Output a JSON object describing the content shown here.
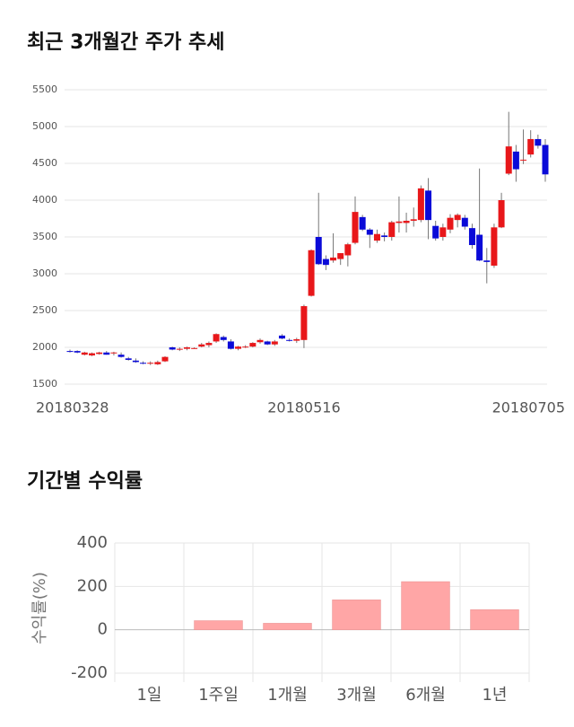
{
  "chart_data": [
    {
      "type": "candlestick",
      "title": "최근 3개월간 주가 추세",
      "categories": [
        "20180328",
        null,
        null,
        null,
        null,
        null,
        null,
        null,
        null,
        null,
        null,
        null,
        null,
        null,
        null,
        null,
        null,
        null,
        null,
        null,
        null,
        null,
        null,
        null,
        null,
        null,
        null,
        null,
        null,
        null,
        null,
        null,
        "20180516",
        null,
        null,
        null,
        null,
        null,
        null,
        null,
        null,
        null,
        null,
        null,
        null,
        null,
        null,
        null,
        null,
        null,
        null,
        null,
        null,
        null,
        null,
        null,
        null,
        null,
        null,
        null,
        null,
        null,
        null,
        null,
        null,
        "20180705"
      ],
      "open": [
        1950,
        1950,
        1900,
        1890,
        1910,
        1930,
        1920,
        1900,
        1850,
        1820,
        1790,
        1790,
        1770,
        1810,
        2000,
        1970,
        1980,
        1990,
        2010,
        2030,
        2080,
        2140,
        2080,
        1980,
        2000,
        2010,
        2070,
        2080,
        2040,
        2160,
        2100,
        2090,
        2100,
        2700,
        3500,
        3200,
        3180,
        3200,
        3250,
        3420,
        3770,
        3600,
        3450,
        3520,
        3500,
        3690,
        3690,
        3720,
        3730,
        4130,
        3650,
        3500,
        3600,
        3730,
        3760,
        3620,
        3530,
        3180,
        3110,
        3630,
        4360,
        4660,
        4540,
        4620,
        4830,
        4750
      ],
      "high": [
        1970,
        1960,
        1940,
        1930,
        1940,
        1950,
        1940,
        1930,
        1870,
        1850,
        1810,
        1810,
        1820,
        1880,
        2010,
        2000,
        2010,
        2000,
        2060,
        2080,
        2190,
        2160,
        2110,
        2020,
        2030,
        2070,
        2120,
        2090,
        2100,
        2180,
        2120,
        2130,
        2580,
        3330,
        4100,
        3250,
        3550,
        3280,
        3420,
        4050,
        3800,
        3620,
        3600,
        3560,
        3720,
        4050,
        3830,
        3900,
        4200,
        4300,
        3720,
        3680,
        3810,
        3820,
        3800,
        3680,
        4430,
        3350,
        3680,
        4100,
        5200,
        4750,
        4960,
        4950,
        4890,
        4830
      ],
      "low": [
        1930,
        1920,
        1890,
        1880,
        1900,
        1900,
        1890,
        1860,
        1820,
        1790,
        1770,
        1760,
        1760,
        1800,
        1960,
        1950,
        1960,
        1980,
        2000,
        2000,
        2060,
        2080,
        1970,
        1960,
        1990,
        2000,
        2050,
        2030,
        2020,
        2110,
        2080,
        2060,
        1990,
        2690,
        3120,
        3050,
        3150,
        3120,
        3100,
        3400,
        3580,
        3350,
        3420,
        3440,
        3450,
        3560,
        3560,
        3640,
        3700,
        3470,
        3450,
        3450,
        3550,
        3630,
        3600,
        3340,
        3170,
        2870,
        3080,
        3620,
        4340,
        4250,
        4490,
        4580,
        4700,
        4250
      ],
      "close": [
        1940,
        1930,
        1930,
        1920,
        1930,
        1900,
        1930,
        1870,
        1830,
        1800,
        1780,
        1790,
        1800,
        1870,
        1970,
        1980,
        2000,
        1990,
        2040,
        2060,
        2180,
        2100,
        1980,
        2010,
        2010,
        2060,
        2100,
        2040,
        2080,
        2120,
        2090,
        2110,
        2560,
        3320,
        3130,
        3120,
        3220,
        3280,
        3400,
        3840,
        3600,
        3530,
        3540,
        3500,
        3700,
        3710,
        3720,
        3740,
        4160,
        3730,
        3480,
        3630,
        3760,
        3800,
        3640,
        3390,
        3180,
        3160,
        3630,
        4000,
        4730,
        4420,
        4550,
        4830,
        4740,
        4350
      ],
      "up_color": "#e8171a",
      "down_color": "#0a0ad8",
      "ylim": [
        1500,
        5500
      ],
      "yticks": [
        1500,
        2000,
        2500,
        3000,
        3500,
        4000,
        4500,
        5000,
        5500
      ],
      "grid": true
    },
    {
      "type": "bar",
      "title": "기간별 수익률",
      "ylabel": "수익률(%)",
      "categories": [
        "1일",
        "1주일",
        "1개월",
        "3개월",
        "6개월",
        "1년"
      ],
      "values": [
        0,
        42,
        30,
        138,
        222,
        93
      ],
      "color": "#ffa6a6",
      "ylim": [
        -200,
        400
      ],
      "yticks": [
        -200,
        0,
        200,
        400
      ],
      "grid": true
    }
  ]
}
